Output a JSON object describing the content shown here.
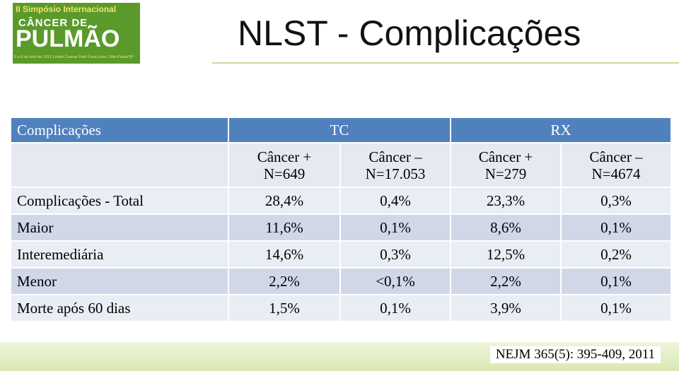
{
  "logo": {
    "line1": "II Simpósio Internacional",
    "line2": "CÂNCER DE",
    "line3": "PULMÃO",
    "line4": "5 e 6 de abril de 2013 | Hotel Caesar Park Faria Lima | São Paulo/SP"
  },
  "header": {
    "title": "NLST - Complicações"
  },
  "table": {
    "header": [
      "Complicações",
      "TC",
      "RX"
    ],
    "subheader": [
      [
        "Câncer +",
        "N=649"
      ],
      [
        "Câncer –",
        "N=17.053"
      ],
      [
        "Câncer +",
        "N=279"
      ],
      [
        "Câncer –",
        "N=4674"
      ]
    ],
    "rows": [
      [
        "Complicações - Total",
        "28,4%",
        "0,4%",
        "23,3%",
        "0,3%"
      ],
      [
        "Maior",
        "11,6%",
        "0,1%",
        "8,6%",
        "0,1%"
      ],
      [
        "Interemediária",
        "14,6%",
        "0,3%",
        "12,5%",
        "0,2%"
      ],
      [
        "Menor",
        "2,2%",
        "<0,1%",
        "2,2%",
        "0,1%"
      ],
      [
        "Morte após 60 dias",
        "1,5%",
        "0,1%",
        "3,9%",
        "0,1%"
      ]
    ]
  },
  "footer": {
    "reference": "NEJM 365(5): 395-409, 2011"
  }
}
